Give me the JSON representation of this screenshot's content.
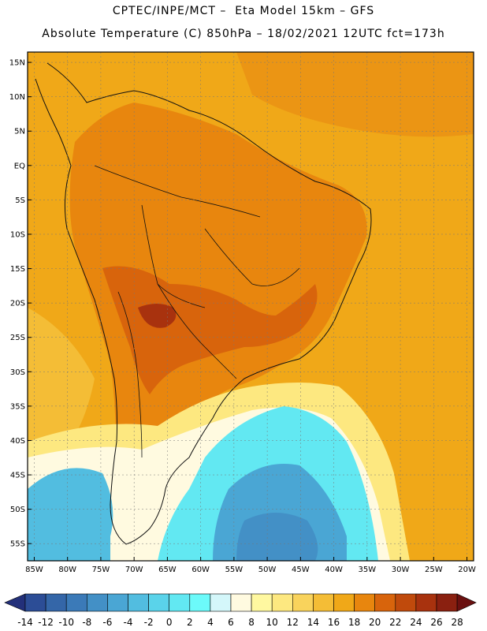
{
  "header": {
    "line1": "CPTEC/INPE/MCT –  Eta Model 15km – GFS",
    "line2": "Absolute Temperature (C) 850hPa – 18/02/2021 12UTC fct=173h"
  },
  "map": {
    "lat_labels": [
      "15N",
      "10N",
      "5N",
      "EQ",
      "5S",
      "10S",
      "15S",
      "20S",
      "25S",
      "30S",
      "35S",
      "40S",
      "45S",
      "50S",
      "55S"
    ],
    "lon_labels": [
      "85W",
      "80W",
      "75W",
      "70W",
      "65W",
      "60W",
      "55W",
      "50W",
      "45W",
      "40W",
      "35W",
      "30W",
      "25W",
      "20W"
    ],
    "extent": {
      "lon": [
        -86,
        -19
      ],
      "lat": [
        -57.5,
        16.5
      ]
    },
    "gridlines": true
  },
  "colorbar": {
    "labels": [
      "-14",
      "-12",
      "-10",
      "-8",
      "-6",
      "-4",
      "-2",
      "0",
      "2",
      "4",
      "6",
      "8",
      "10",
      "12",
      "14",
      "16",
      "18",
      "20",
      "22",
      "24",
      "26",
      "28"
    ],
    "colors": [
      "#23307a",
      "#2c4d96",
      "#3466a8",
      "#3b7ab8",
      "#4390c6",
      "#4aa6d4",
      "#52bde0",
      "#5ad3ea",
      "#62e8f2",
      "#6cfafa",
      "#d4f7fa",
      "#fffae0",
      "#fff8a0",
      "#fde880",
      "#f9d35c",
      "#f4bd36",
      "#f0a818",
      "#e8860e",
      "#d8640c",
      "#c04a0c",
      "#a8320e",
      "#8a2010",
      "#6a1010"
    ]
  }
}
